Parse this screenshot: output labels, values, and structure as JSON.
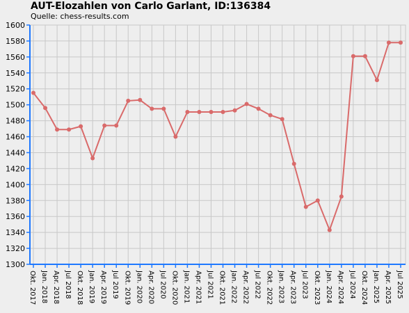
{
  "chart_data": {
    "type": "line",
    "title": "AUT-Elozahlen von Carlo Garlant, ID:136384",
    "subtitle": "Quelle: chess-results.com",
    "categories": [
      "Okt. 2017",
      "Jan. 2018",
      "Apr. 2018",
      "Jul 2018",
      "Okt. 2018",
      "Jan. 2019",
      "Apr. 2019",
      "Jul 2019",
      "Okt. 2019",
      "Jan. 2020",
      "Apr. 2020",
      "Jul 2020",
      "Okt. 2020",
      "Jan. 2021",
      "Apr. 2021",
      "Jul 2021",
      "Okt. 2021",
      "Jan. 2022",
      "Apr. 2022",
      "Jul 2022",
      "Okt. 2022",
      "Jan. 2023",
      "Apr. 2023",
      "Jul 2023",
      "Okt. 2023",
      "Jan. 2024",
      "Apr. 2024",
      "Jul 2024",
      "Okt. 2024",
      "Jan. 2025",
      "Apr. 2025",
      "Jul 2025"
    ],
    "values": [
      1515,
      1496,
      1469,
      1469,
      1473,
      1433,
      1474,
      1474,
      1505,
      1506,
      1495,
      1495,
      1460,
      1491,
      1491,
      1491,
      1491,
      1493,
      1501,
      1495,
      1487,
      1482,
      1426,
      1372,
      1380,
      1343,
      1385,
      1561,
      1561,
      1531,
      1578,
      1578
    ],
    "color": "#d96a6a",
    "ylim": [
      1300,
      1600
    ],
    "yticks": [
      1300,
      1320,
      1340,
      1360,
      1380,
      1400,
      1420,
      1440,
      1460,
      1480,
      1500,
      1520,
      1540,
      1560,
      1580,
      1600
    ],
    "grid": true
  }
}
